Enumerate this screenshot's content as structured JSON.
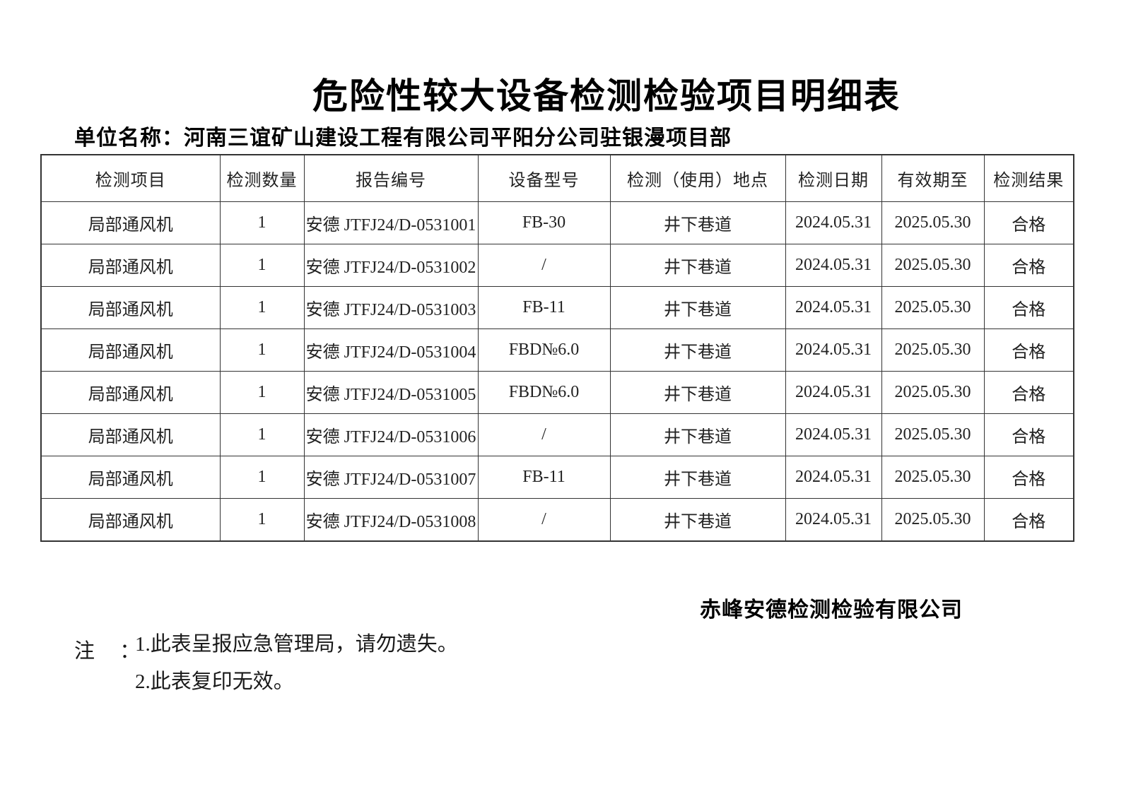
{
  "document": {
    "title": "危险性较大设备检测检验项目明细表",
    "unit_label": "单位名称：",
    "unit_name": "河南三谊矿山建设工程有限公司平阳分公司驻银漫项目部",
    "issuer": "赤峰安德检测检验有限公司",
    "notes": {
      "label": "注 ：",
      "items": [
        "1.此表呈报应急管理局，请勿遗失。",
        "2.此表复印无效。"
      ]
    }
  },
  "table": {
    "headers": [
      "检测项目",
      "检测数量",
      "报告编号",
      "设备型号",
      "检测（使用）地点",
      "检测日期",
      "有效期至",
      "检测结果"
    ],
    "rows": [
      [
        "局部通风机",
        "1",
        "安德 JTFJ24/D-0531001",
        "FB-30",
        "井下巷道",
        "2024.05.31",
        "2025.05.30",
        "合格"
      ],
      [
        "局部通风机",
        "1",
        "安德 JTFJ24/D-0531002",
        "/",
        "井下巷道",
        "2024.05.31",
        "2025.05.30",
        "合格"
      ],
      [
        "局部通风机",
        "1",
        "安德 JTFJ24/D-0531003",
        "FB-11",
        "井下巷道",
        "2024.05.31",
        "2025.05.30",
        "合格"
      ],
      [
        "局部通风机",
        "1",
        "安德 JTFJ24/D-0531004",
        "FBD№6.0",
        "井下巷道",
        "2024.05.31",
        "2025.05.30",
        "合格"
      ],
      [
        "局部通风机",
        "1",
        "安德 JTFJ24/D-0531005",
        "FBD№6.0",
        "井下巷道",
        "2024.05.31",
        "2025.05.30",
        "合格"
      ],
      [
        "局部通风机",
        "1",
        "安德 JTFJ24/D-0531006",
        "/",
        "井下巷道",
        "2024.05.31",
        "2025.05.30",
        "合格"
      ],
      [
        "局部通风机",
        "1",
        "安德 JTFJ24/D-0531007",
        "FB-11",
        "井下巷道",
        "2024.05.31",
        "2025.05.30",
        "合格"
      ],
      [
        "局部通风机",
        "1",
        "安德 JTFJ24/D-0531008",
        "/",
        "井下巷道",
        "2024.05.31",
        "2025.05.30",
        "合格"
      ]
    ]
  }
}
